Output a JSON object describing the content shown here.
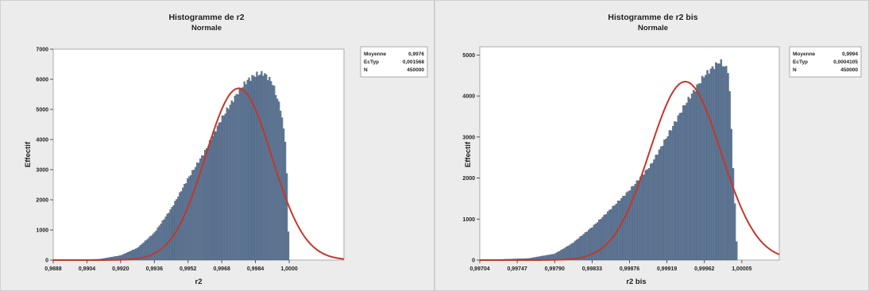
{
  "chart_data": [
    {
      "type": "histogram",
      "title": "Histogramme de r2",
      "subtitle": "Normale",
      "xlabel": "r2",
      "ylabel": "Effectif",
      "xlim": [
        0.9888,
        1.0026
      ],
      "ylim": [
        0,
        7000
      ],
      "xticks": [
        0.9888,
        0.9904,
        0.992,
        0.9936,
        0.9952,
        0.9968,
        0.9984,
        1.0
      ],
      "xtick_labels": [
        "0,9888",
        "0,9904",
        "0,9920",
        "0,9936",
        "0,9952",
        "0,9968",
        "0,9984",
        "1,0000"
      ],
      "yticks": [
        0,
        1000,
        2000,
        3000,
        4000,
        5000,
        6000,
        7000
      ],
      "ytick_labels": [
        "0",
        "1000",
        "2000",
        "3000",
        "4000",
        "5000",
        "6000",
        "7000"
      ],
      "histogram": {
        "bins": 150,
        "x_start": 0.9888,
        "x_end": 1.0,
        "profile_x": [
          0.9888,
          0.991,
          0.992,
          0.9928,
          0.9936,
          0.9944,
          0.9952,
          0.996,
          0.9968,
          0.9976,
          0.998,
          0.9984,
          0.9988,
          0.9992,
          0.9996,
          0.99985,
          1.0
        ],
        "profile_y": [
          0,
          30,
          150,
          400,
          900,
          1700,
          2700,
          3600,
          4700,
          5600,
          5950,
          6150,
          6200,
          5900,
          5000,
          3800,
          0
        ]
      },
      "normal_fit": {
        "mean": 0.9976,
        "sd": 0.001568,
        "peak": 5700
      },
      "legend": [
        {
          "label": "Moyenne",
          "value": "0,9976"
        },
        {
          "label": "EcTyp",
          "value": "0,001568"
        },
        {
          "label": "N",
          "value": "450000"
        }
      ],
      "bar_color": "#5f7897",
      "curve_color": "#c0392b",
      "legend_position": "top-right"
    },
    {
      "type": "histogram",
      "title": "Histogramme de r2 bis",
      "subtitle": "Normale",
      "xlabel": "r2 bis",
      "ylabel": "Effectif",
      "xlim": [
        0.99704,
        1.00048
      ],
      "ylim": [
        0,
        5200
      ],
      "xticks": [
        0.99704,
        0.99747,
        0.9979,
        0.99833,
        0.99876,
        0.99919,
        0.99962,
        1.00005
      ],
      "xtick_labels": [
        "0,99704",
        "0,99747",
        "0,99790",
        "0,99833",
        "0,99876",
        "0,99919",
        "0,99962",
        "1,00005"
      ],
      "yticks": [
        0,
        1000,
        2000,
        3000,
        4000,
        5000
      ],
      "ytick_labels": [
        "0",
        "1000",
        "2000",
        "3000",
        "4000",
        "5000"
      ],
      "histogram": {
        "bins": 150,
        "x_start": 0.99704,
        "x_end": 1.0,
        "profile_x": [
          0.99704,
          0.9976,
          0.9979,
          0.9981,
          0.99833,
          0.9985,
          0.99876,
          0.999,
          0.99919,
          0.9994,
          0.99962,
          0.9998,
          0.9999,
          1.0
        ],
        "profile_y": [
          0,
          40,
          150,
          400,
          800,
          1150,
          1700,
          2300,
          3000,
          3800,
          4500,
          4850,
          4600,
          0
        ]
      },
      "normal_fit": {
        "mean": 0.9994,
        "sd": 0.0004105,
        "peak": 4350
      },
      "legend": [
        {
          "label": "Moyenne",
          "value": "0,9994"
        },
        {
          "label": "EcTyp",
          "value": "0,0004105"
        },
        {
          "label": "N",
          "value": "450000"
        }
      ],
      "bar_color": "#5f7897",
      "curve_color": "#c0392b",
      "legend_position": "top-right"
    }
  ]
}
